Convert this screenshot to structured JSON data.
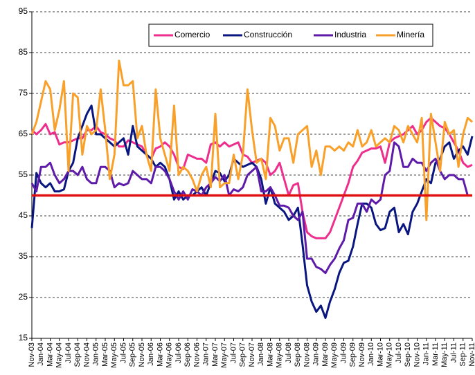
{
  "chart_data": {
    "type": "line",
    "categories": [
      "Nov-03",
      null,
      "Jan-04",
      null,
      "Mar-04",
      null,
      "May-04",
      null,
      "Jul-04",
      null,
      "Sep-04",
      null,
      "Nov-04",
      null,
      "Jan-05",
      null,
      "Mar-05",
      null,
      "May-05",
      null,
      "Jul-05",
      null,
      "Sep-05",
      null,
      "Nov-05",
      null,
      "Jan-06",
      null,
      "Mar-06",
      null,
      "May-06",
      null,
      "Jul-06",
      null,
      "Sep-06",
      null,
      "Nov-06",
      null,
      "Jan-07",
      null,
      "Mar-07",
      null,
      "May-07",
      null,
      "Jul-07",
      null,
      "Sep-07",
      null,
      "Nov-07",
      null,
      "Jan-08",
      null,
      "Mar-08",
      null,
      "May-08",
      null,
      "Jul-08",
      null,
      "Sep-08",
      null,
      "Nov-08",
      null,
      "Jan-09",
      null,
      "Mar-09",
      null,
      "May-09",
      null,
      "Jul-09",
      null,
      "Sep-09",
      null,
      "Nov-09",
      null,
      "Jan-10",
      null,
      "Mar-10",
      null,
      "May-10",
      null,
      "Jul-10",
      null,
      "Sep-10",
      null,
      "Nov-10",
      null,
      "Jan-11",
      null,
      "Mar-11",
      null,
      "May-11",
      null,
      "Jul-11",
      null,
      "Sep-11",
      null,
      "Nov-11"
    ],
    "series": [
      {
        "name": "Comercio",
        "color": "#ee2e8c",
        "values": [
          66,
          65,
          66,
          67.5,
          65,
          65.5,
          62.5,
          63,
          63,
          63.5,
          64,
          64,
          66,
          66,
          67,
          65.5,
          65,
          64,
          63.5,
          62,
          62,
          63.5,
          63,
          62.5,
          62,
          60,
          59,
          61.5,
          62,
          63,
          62,
          60,
          57,
          56.5,
          60,
          59.5,
          59,
          59,
          58,
          62.5,
          63,
          62,
          63,
          62,
          62.5,
          63,
          60,
          59.5,
          58,
          58.5,
          59,
          58,
          55,
          56,
          58,
          54,
          50,
          52.5,
          53,
          46,
          41,
          40,
          39.5,
          39.5,
          39.5,
          41,
          44,
          47,
          50,
          53,
          57,
          58.5,
          60.5,
          61,
          61.5,
          61.5,
          62,
          58,
          63,
          64,
          64.5,
          65,
          66,
          67,
          65,
          66,
          68,
          69,
          68,
          67,
          66.5,
          65,
          63,
          61,
          58,
          57,
          57.5
        ]
      },
      {
        "name": "Construcción",
        "color": "#0a1680",
        "values": [
          42,
          55.5,
          53,
          52,
          53,
          51,
          51,
          51.5,
          56,
          58,
          64,
          67,
          70,
          72,
          65,
          65,
          64,
          63,
          62,
          63,
          64,
          60,
          67,
          62,
          61,
          60,
          59,
          57,
          58,
          57,
          54,
          49,
          51,
          49,
          50,
          50,
          51,
          52,
          50,
          53,
          56,
          55.5,
          53.5,
          55,
          59,
          58,
          57,
          57.5,
          58,
          57,
          54,
          48,
          52,
          48,
          47,
          46,
          44,
          45,
          47,
          38,
          28,
          24,
          21.5,
          23,
          20,
          24,
          27,
          31,
          33.5,
          34,
          37.5,
          43,
          48,
          48,
          47,
          43,
          41.5,
          42,
          46,
          47,
          41,
          43,
          40.5,
          46,
          48,
          51,
          54,
          53,
          58,
          59,
          62,
          63,
          59,
          61,
          62,
          60,
          64.5
        ]
      },
      {
        "name": "Industria",
        "color": "#5e1aa8",
        "values": [
          53,
          51,
          57,
          57,
          58,
          55,
          53,
          54,
          56,
          56,
          55,
          57,
          54,
          53,
          53,
          57,
          57,
          56,
          52,
          53,
          52.5,
          53,
          56,
          55,
          54,
          54,
          53,
          57,
          57,
          56,
          54,
          51,
          49,
          51,
          49,
          51.5,
          51,
          50,
          52,
          53,
          54.5,
          53.5,
          55,
          50,
          51.5,
          51,
          52,
          55,
          56,
          57,
          51,
          51,
          52,
          50,
          47.5,
          47.5,
          47,
          45,
          44,
          46,
          34.5,
          34.5,
          32.5,
          32,
          31,
          33,
          34.5,
          37,
          39,
          44,
          44.5,
          48,
          48,
          46,
          49,
          48,
          49,
          55,
          56,
          63,
          62,
          57,
          57,
          59,
          58,
          58,
          56,
          58,
          59,
          56,
          54,
          55,
          55,
          54,
          54,
          50,
          50
        ]
      },
      {
        "name": "Minería",
        "color": "#f9a02a",
        "values": [
          65,
          68,
          73,
          78,
          76,
          66,
          71,
          78,
          56,
          75,
          74,
          60,
          67,
          65,
          66,
          76,
          66,
          54,
          60,
          83,
          77,
          77,
          78,
          64,
          67,
          60,
          56,
          76,
          64,
          60,
          56,
          72,
          55,
          57,
          56,
          54,
          51,
          55,
          57,
          52,
          70,
          52,
          53,
          53,
          60,
          54,
          60,
          76,
          66,
          58,
          59,
          54,
          69,
          67,
          61,
          64,
          64,
          58,
          65,
          66,
          67,
          57,
          61,
          55,
          62,
          62,
          61,
          62,
          61,
          63,
          62,
          66,
          62,
          63,
          66,
          62,
          63,
          64,
          63,
          67,
          66,
          63,
          67,
          65,
          63,
          69,
          44,
          70,
          63,
          56,
          68,
          65,
          66,
          57,
          65,
          69,
          68
        ]
      }
    ],
    "reference_line": {
      "value": 50,
      "color": "#e01010"
    },
    "ylim": [
      15,
      95
    ],
    "yticks": [
      15,
      25,
      35,
      45,
      55,
      65,
      75,
      85,
      95
    ],
    "grid": true,
    "legend": "top"
  }
}
